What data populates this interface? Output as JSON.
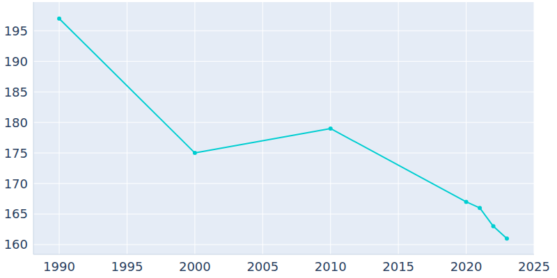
{
  "chart_data": {
    "type": "line",
    "x": [
      1990,
      2000,
      2010,
      2020,
      2021,
      2022,
      2023
    ],
    "values": [
      197,
      175,
      179,
      167,
      166,
      163,
      161
    ],
    "color": "#00ced1",
    "marker": "circle",
    "xlim": [
      1988.1,
      2025
    ],
    "xticks": [
      1990,
      1995,
      2000,
      2005,
      2010,
      2015,
      2020,
      2025
    ],
    "ylim": [
      158.4,
      199.7
    ],
    "yticks": [
      160,
      165,
      170,
      175,
      180,
      185,
      190,
      195
    ],
    "grid": true
  }
}
